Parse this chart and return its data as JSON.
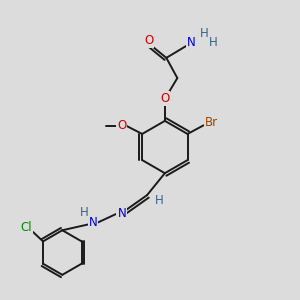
{
  "bg_color": "#dcdcdc",
  "bond_color": "#1a1a1a",
  "bond_width": 1.4,
  "atom_colors": {
    "O": "#cc0000",
    "N": "#0000cc",
    "Br": "#994400",
    "Cl": "#008800",
    "H": "#336688",
    "C": "#1a1a1a"
  },
  "font_size": 8.5
}
